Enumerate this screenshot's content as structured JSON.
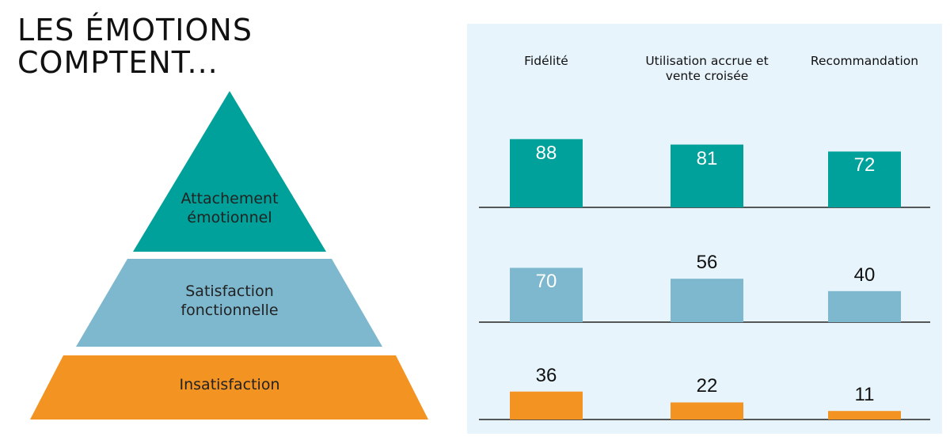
{
  "title": "LES ÉMOTIONS COMPTENT...",
  "chart_data": {
    "type": "bar",
    "categories": [
      "Fidélité",
      "Utilisation accrue et vente croisée",
      "Recommandation"
    ],
    "series": [
      {
        "name": "Attachement émotionnel",
        "color": "#00a19a",
        "values": [
          88,
          81,
          72
        ]
      },
      {
        "name": "Satisfaction fonctionnelle",
        "color": "#7db8cf",
        "values": [
          70,
          56,
          40
        ]
      },
      {
        "name": "Insatisfaction",
        "color": "#f39322",
        "values": [
          36,
          22,
          11
        ]
      }
    ],
    "ylim": [
      0,
      100
    ]
  }
}
